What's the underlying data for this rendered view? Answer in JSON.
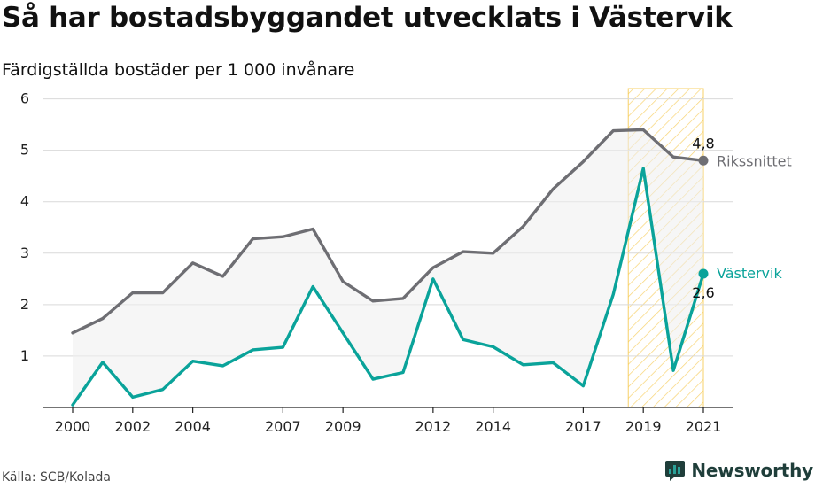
{
  "title": "Så har bostadsbyggandet utvecklats i Västervik",
  "subtitle": "Färdigställda bostäder per 1 000 invånare",
  "source": "Källa: SCB/Kolada",
  "logo": {
    "text": "Newsworthy",
    "icon": "newsworthy-chart-icon",
    "color": "#1f3e3a",
    "accent": "#2aa198"
  },
  "chart_data": {
    "type": "line",
    "x": [
      2000,
      2001,
      2002,
      2003,
      2004,
      2005,
      2006,
      2007,
      2008,
      2009,
      2010,
      2011,
      2012,
      2013,
      2014,
      2015,
      2016,
      2017,
      2018,
      2019,
      2020,
      2021
    ],
    "x_tick_labels": [
      "2000",
      "2002",
      "2004",
      "2007",
      "2009",
      "2012",
      "2014",
      "2017",
      "2019",
      "2021"
    ],
    "y_ticks": [
      1,
      2,
      3,
      4,
      5,
      6
    ],
    "ylim": [
      0,
      6.2
    ],
    "xlim": [
      1999.5,
      2021.5
    ],
    "grid": true,
    "highlight_range": [
      2018.5,
      2021
    ],
    "highlight_color": "#f5c542",
    "series": [
      {
        "name": "Rikssnittet",
        "color": "#6e6e73",
        "values": [
          1.45,
          1.73,
          2.23,
          2.23,
          2.81,
          2.55,
          3.28,
          3.32,
          3.47,
          2.45,
          2.07,
          2.12,
          2.72,
          3.03,
          3.0,
          3.52,
          4.25,
          4.78,
          5.38,
          5.4,
          4.87,
          4.8
        ],
        "end_label": "4,8"
      },
      {
        "name": "Västervik",
        "color": "#0aa39a",
        "values": [
          0.05,
          0.88,
          0.2,
          0.35,
          0.9,
          0.81,
          1.12,
          1.17,
          2.35,
          1.45,
          0.55,
          0.68,
          2.5,
          1.32,
          1.18,
          0.83,
          0.87,
          0.42,
          2.2,
          4.65,
          0.72,
          2.6
        ],
        "end_label": "2,6"
      }
    ]
  }
}
